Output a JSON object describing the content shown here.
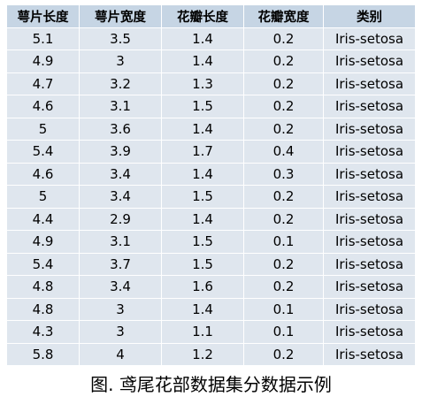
{
  "table": {
    "headers": [
      "萼片长度",
      "萼片宽度",
      "花瓣长度",
      "花瓣宽度",
      "类别"
    ],
    "rows": [
      [
        "5.1",
        "3.5",
        "1.4",
        "0.2",
        "Iris-setosa"
      ],
      [
        "4.9",
        "3",
        "1.4",
        "0.2",
        "Iris-setosa"
      ],
      [
        "4.7",
        "3.2",
        "1.3",
        "0.2",
        "Iris-setosa"
      ],
      [
        "4.6",
        "3.1",
        "1.5",
        "0.2",
        "Iris-setosa"
      ],
      [
        "5",
        "3.6",
        "1.4",
        "0.2",
        "Iris-setosa"
      ],
      [
        "5.4",
        "3.9",
        "1.7",
        "0.4",
        "Iris-setosa"
      ],
      [
        "4.6",
        "3.4",
        "1.4",
        "0.3",
        "Iris-setosa"
      ],
      [
        "5",
        "3.4",
        "1.5",
        "0.2",
        "Iris-setosa"
      ],
      [
        "4.4",
        "2.9",
        "1.4",
        "0.2",
        "Iris-setosa"
      ],
      [
        "4.9",
        "3.1",
        "1.5",
        "0.1",
        "Iris-setosa"
      ],
      [
        "5.4",
        "3.7",
        "1.5",
        "0.2",
        "Iris-setosa"
      ],
      [
        "4.8",
        "3.4",
        "1.6",
        "0.2",
        "Iris-setosa"
      ],
      [
        "4.8",
        "3",
        "1.4",
        "0.1",
        "Iris-setosa"
      ],
      [
        "4.3",
        "3",
        "1.1",
        "0.1",
        "Iris-setosa"
      ],
      [
        "5.8",
        "4",
        "1.2",
        "0.2",
        "Iris-setosa"
      ]
    ]
  },
  "caption": "图. 鸢尾花部数据集分数据示例",
  "colors": {
    "header_bg": "#c6d5e4",
    "cell_bg": "#dfe6ee",
    "grid_line": "#ffffff"
  }
}
